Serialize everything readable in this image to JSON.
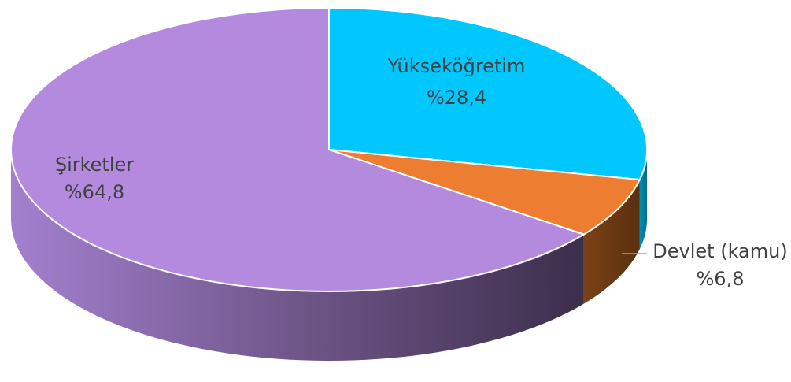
{
  "chart_data": {
    "type": "pie3d",
    "categories": [
      "Yükseköğretim",
      "Devlet (kamu)",
      "Şirketler"
    ],
    "values": [
      28.4,
      6.8,
      64.8
    ],
    "value_labels": [
      "%28,4",
      "%6,8",
      "%64,8"
    ],
    "colors": [
      "#00c8ff",
      "#ed7d31",
      "#b48ade"
    ]
  }
}
